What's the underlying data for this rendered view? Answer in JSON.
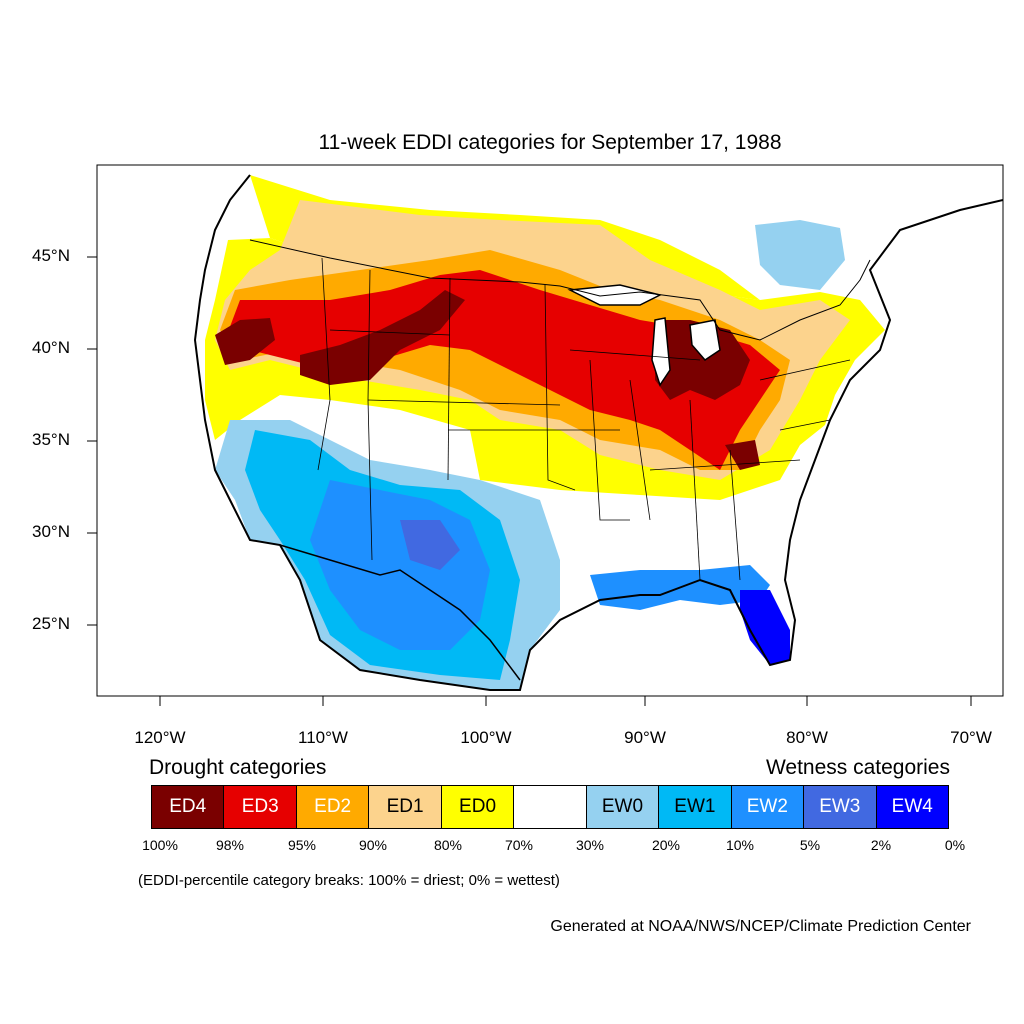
{
  "title": "11-week EDDI categories for September 17, 1988",
  "map": {
    "lat_labels": [
      "45°N",
      "40°N",
      "35°N",
      "30°N",
      "25°N"
    ],
    "lon_labels": [
      "120°W",
      "110°W",
      "100°W",
      "90°W",
      "80°W",
      "70°W"
    ]
  },
  "legend": {
    "drought_heading": "Drought categories",
    "wetness_heading": "Wetness categories",
    "categories": [
      {
        "label": "ED4",
        "color": "#7a0000",
        "text_color": "#ffffff"
      },
      {
        "label": "ED3",
        "color": "#e60000",
        "text_color": "#ffffff"
      },
      {
        "label": "ED2",
        "color": "#ffaa00",
        "text_color": "#ffffff"
      },
      {
        "label": "ED1",
        "color": "#fcd38d",
        "text_color": "#000000"
      },
      {
        "label": "ED0",
        "color": "#ffff00",
        "text_color": "#000000"
      },
      {
        "label": "",
        "color": "#ffffff",
        "text_color": "#000000"
      },
      {
        "label": "EW0",
        "color": "#95d1f0",
        "text_color": "#000000"
      },
      {
        "label": "EW1",
        "color": "#00b9f5",
        "text_color": "#000000"
      },
      {
        "label": "EW2",
        "color": "#1e90ff",
        "text_color": "#ffffff"
      },
      {
        "label": "EW3",
        "color": "#4169e1",
        "text_color": "#ffffff"
      },
      {
        "label": "EW4",
        "color": "#0000ff",
        "text_color": "#ffffff"
      }
    ],
    "breaks": [
      "100%",
      "98%",
      "95%",
      "90%",
      "80%",
      "70%",
      "30%",
      "20%",
      "10%",
      "5%",
      "2%",
      "0%"
    ],
    "break_note": "(EDDI-percentile category breaks: 100% = driest; 0% = wettest)"
  },
  "credit": "Generated at NOAA/NWS/NCEP/Climate Prediction Center"
}
